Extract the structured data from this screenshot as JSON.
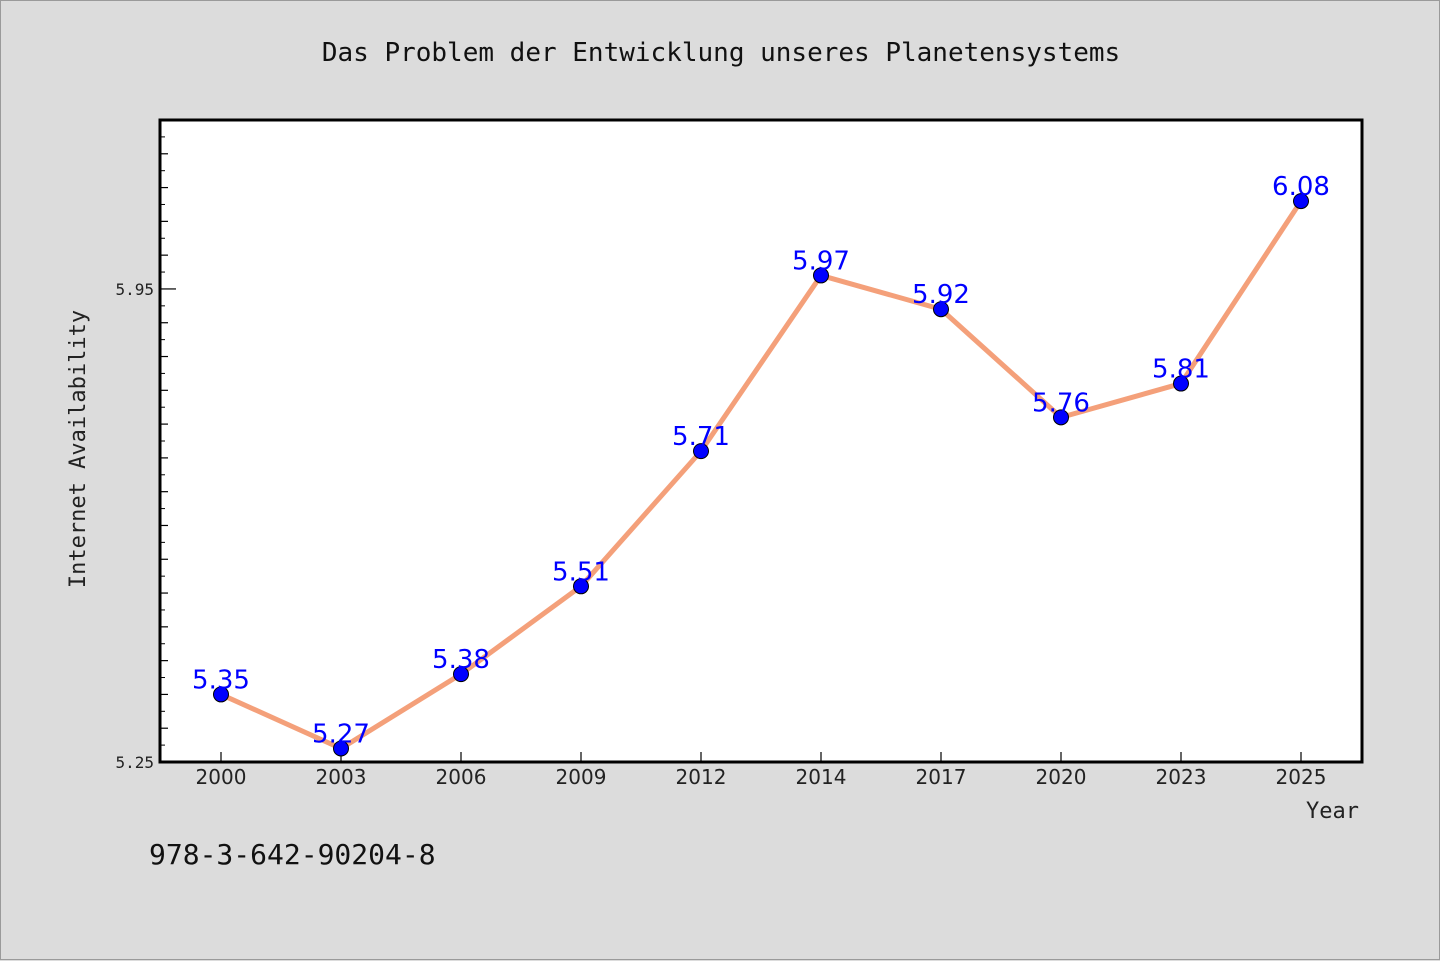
{
  "chart_data": {
    "type": "line",
    "title": "Das Problem der Entwicklung unseres Planetensystems",
    "xlabel": "Year",
    "ylabel": "Internet Availability",
    "categories": [
      "2000",
      "2003",
      "2006",
      "2009",
      "2012",
      "2014",
      "2017",
      "2020",
      "2023",
      "2025"
    ],
    "series": [
      {
        "values": [
          5.35,
          5.27,
          5.38,
          5.51,
          5.71,
          5.97,
          5.92,
          5.76,
          5.81,
          6.08
        ],
        "data_labels": [
          "5.35",
          "5.27",
          "5.38",
          "5.51",
          "5.71",
          "5.97",
          "5.92",
          "5.76",
          "5.81",
          "6.08"
        ],
        "line_color": "#f4a07a",
        "marker_color": "#0000ff"
      }
    ],
    "ylim": [
      5.25,
      6.2
    ],
    "yticks": [
      5.25,
      5.95
    ],
    "ytick_labels": [
      "5.25",
      "5.95"
    ],
    "grid": false,
    "legend": "none"
  },
  "footer": {
    "isbn": "978-3-642-90204-8"
  },
  "colors": {
    "background": "#dcdcdc",
    "plot_background": "#ffffff",
    "axis": "#000000"
  }
}
